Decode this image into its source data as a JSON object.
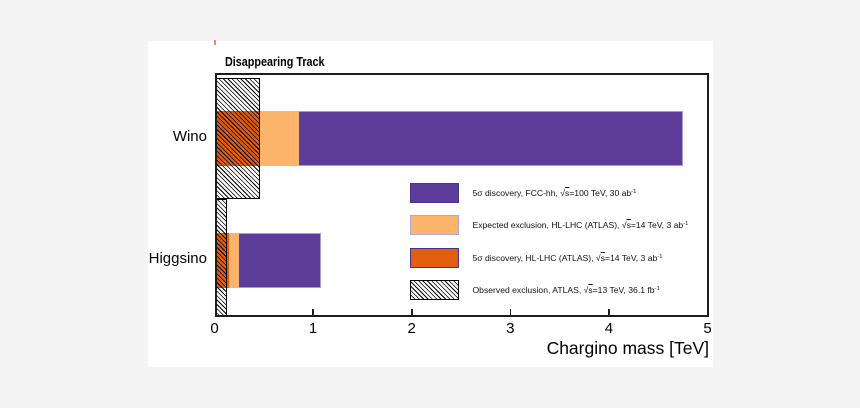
{
  "background_color": "#f4f4f4",
  "figure_background": "#ffffff",
  "chart_data": {
    "type": "bar",
    "orientation": "horizontal",
    "title": "Disappearing Track",
    "xlabel": "Chargino mass [TeV]",
    "xlim": [
      0,
      5
    ],
    "xticks": [
      "0",
      "1",
      "2",
      "3",
      "4",
      "5"
    ],
    "categories": [
      "Wino",
      "Higgsino"
    ],
    "series": [
      {
        "name": "5σ discovery, FCC-hh, √s=100 TeV, 30 ab⁻¹",
        "color": "#5c3d99",
        "values": [
          4.75,
          1.08
        ]
      },
      {
        "name": "Expected exclusion, HL-LHC (ATLAS), √s=14 TeV, 3 ab⁻¹",
        "color": "#fcb46a",
        "values": [
          0.86,
          0.25
        ]
      },
      {
        "name": "5σ discovery, HL-LHC (ATLAS), √s=14 TeV, 3 ab⁻¹",
        "color": "#e35d0e",
        "values": [
          0.46,
          0.15
        ]
      },
      {
        "name": "Observed exclusion, ATLAS, √s=13 TeV, 36.1 fb⁻¹",
        "pattern": "black-diagonal-hatch",
        "values": [
          0.46,
          0.13
        ]
      }
    ],
    "legend_position": "bottom-right-inside"
  },
  "legend": {
    "items": [
      {
        "pre": "5σ discovery, FCC-hh, ",
        "sqrt_s": "s",
        "post": "=100 TeV, 30 ab",
        "sup": "-1",
        "swatch": "purple"
      },
      {
        "pre": "Expected exclusion, HL-LHC (ATLAS), ",
        "sqrt_s": "s",
        "post": "=14 TeV, 3 ab",
        "sup": "-1",
        "swatch": "light-orange"
      },
      {
        "pre": "5σ discovery, HL-LHC (ATLAS), ",
        "sqrt_s": "s",
        "post": "=14 TeV, 3 ab",
        "sup": "-1",
        "swatch": "dark-orange"
      },
      {
        "pre": "Observed exclusion, ATLAS, ",
        "sqrt_s": "s",
        "post": "=13 TeV, 36.1 fb",
        "sup": "-1",
        "swatch": "hatched"
      }
    ]
  },
  "marks": {
    "stray_tick_color": "#d98f80"
  }
}
